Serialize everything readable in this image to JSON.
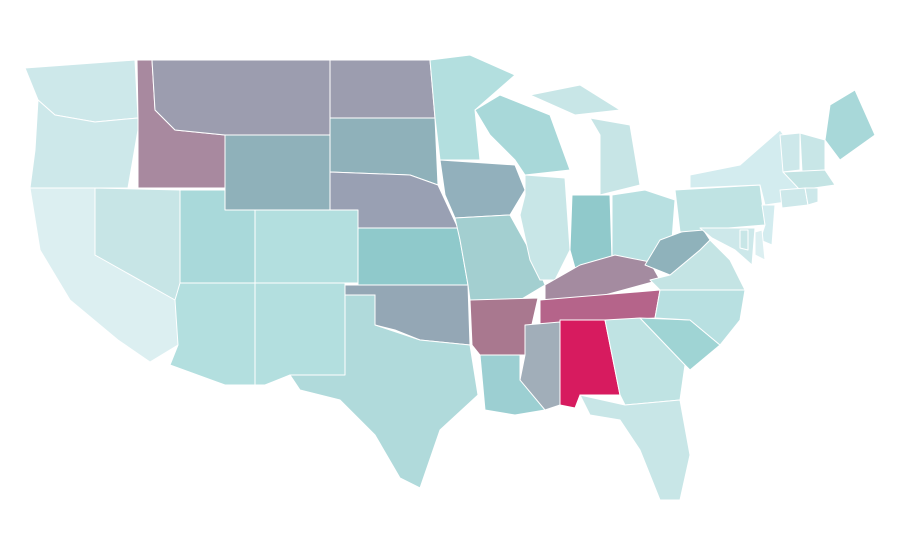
{
  "map": {
    "fills": [
      "#cde8ea",
      "#cde8ea",
      "#dceff1",
      "#c7e5e6",
      "#a8899f",
      "#9c9daf",
      "#8fb1ba",
      "#a9d9da",
      "#b3dfdf",
      "#b3dfdf",
      "#b3dfdf",
      "#9c9daf",
      "#8fb1ba",
      "#99a0b3",
      "#8fc9cb",
      "#94a7b5",
      "#b0dadb",
      "#b3dfdf",
      "#92b0bc",
      "#a3cfd0",
      "#a9788f",
      "#9ccfd2",
      "#a8d8d9",
      "#c8e6e7",
      "#c7e5e6",
      "#c8e6e7",
      "#90c9cb",
      "#b8e0e1",
      "#a48ba0",
      "#b5648a",
      "#a1aeb9",
      "#d71b5f",
      "#bfe3e3",
      "#c8e6e7",
      "#9fd4d4",
      "#b8e0e1",
      "#c4e4e4",
      "#8fb2bb",
      "#bfe3e3",
      "#d3ecef",
      "#a8d8d9",
      "#cde8ea",
      "#c8e6e7",
      "#c4e4e4",
      "#cde8ea",
      "#cde8ea",
      "#d3ecef",
      "#dceff1",
      "#cde8ea",
      "#c8e6e7"
    ]
  }
}
